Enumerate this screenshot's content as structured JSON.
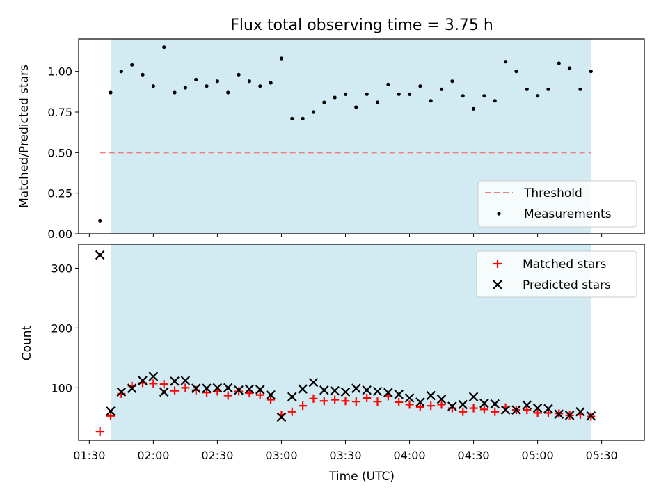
{
  "chart_data": {
    "title": "Flux total observing time = 3.75 h",
    "xlabel": "Time (UTC)",
    "x_ticks": [
      "01:30",
      "02:00",
      "02:30",
      "03:00",
      "03:30",
      "04:00",
      "04:30",
      "05:00",
      "05:30"
    ],
    "x_range_minutes": [
      85,
      350
    ],
    "shaded_span_minutes": [
      100,
      325
    ],
    "colors": {
      "shade": "#add8e6",
      "threshold": "#f08080",
      "measurement": "#000000",
      "matched": "#ff0000",
      "predicted": "#000000"
    },
    "panels": [
      {
        "type": "scatter",
        "ylabel": "Matched/Predicted stars",
        "ylim": [
          0,
          1.2
        ],
        "yticks": [
          "0.00",
          "0.25",
          "0.50",
          "0.75",
          "1.00"
        ],
        "legend_position": "lower right",
        "threshold": {
          "name": "Threshold",
          "value": 0.5,
          "x_range_minutes": [
            95,
            325
          ]
        },
        "series": [
          {
            "name": "Measurements",
            "x_minutes": [
              95,
              100,
              105,
              110,
              115,
              120,
              125,
              130,
              135,
              140,
              145,
              150,
              155,
              160,
              165,
              170,
              175,
              180,
              185,
              190,
              195,
              200,
              205,
              210,
              215,
              220,
              225,
              230,
              235,
              240,
              245,
              250,
              255,
              260,
              265,
              270,
              275,
              280,
              285,
              290,
              295,
              300,
              305,
              310,
              315,
              320,
              325
            ],
            "y": [
              0.08,
              0.87,
              1.0,
              1.04,
              0.98,
              0.91,
              1.15,
              0.87,
              0.9,
              0.95,
              0.91,
              0.94,
              0.87,
              0.98,
              0.94,
              0.91,
              0.93,
              1.08,
              0.71,
              0.71,
              0.75,
              0.81,
              0.84,
              0.86,
              0.78,
              0.86,
              0.81,
              0.92,
              0.86,
              0.86,
              0.91,
              0.82,
              0.89,
              0.94,
              0.85,
              0.77,
              0.85,
              0.82,
              1.06,
              1.0,
              0.89,
              0.85,
              0.89,
              1.05,
              1.02,
              0.89,
              1.0
            ]
          }
        ]
      },
      {
        "type": "scatter",
        "ylabel": "Count",
        "ylim": [
          12,
          340
        ],
        "yticks": [
          "100",
          "200",
          "300"
        ],
        "legend_position": "upper right",
        "series": [
          {
            "name": "Matched stars",
            "marker": "plus",
            "x_minutes": [
              95,
              100,
              105,
              110,
              115,
              120,
              125,
              130,
              135,
              140,
              145,
              150,
              155,
              160,
              165,
              170,
              175,
              180,
              185,
              190,
              195,
              200,
              205,
              210,
              215,
              220,
              225,
              230,
              235,
              240,
              245,
              250,
              255,
              260,
              265,
              270,
              275,
              280,
              285,
              290,
              295,
              300,
              305,
              310,
              315,
              320,
              325
            ],
            "y": [
              27,
              53,
              90,
              103,
              108,
              107,
              106,
              95,
              100,
              96,
              92,
              94,
              87,
              94,
              91,
              88,
              80,
              55,
              60,
              70,
              82,
              78,
              80,
              78,
              77,
              83,
              77,
              86,
              76,
              72,
              68,
              70,
              72,
              66,
              60,
              66,
              64,
              60,
              67,
              63,
              63,
              58,
              58,
              57,
              54,
              55,
              52
            ]
          },
          {
            "name": "Predicted stars",
            "marker": "x",
            "x_minutes": [
              95,
              100,
              105,
              110,
              115,
              120,
              125,
              130,
              135,
              140,
              145,
              150,
              155,
              160,
              165,
              170,
              175,
              180,
              185,
              190,
              195,
              200,
              205,
              210,
              215,
              220,
              225,
              230,
              235,
              240,
              245,
              250,
              255,
              260,
              265,
              270,
              275,
              280,
              285,
              290,
              295,
              300,
              305,
              310,
              315,
              320,
              325
            ],
            "y": [
              322,
              61,
              93,
              99,
              112,
              119,
              93,
              111,
              112,
              99,
              99,
              100,
              100,
              96,
              98,
              97,
              88,
              51,
              85,
              98,
              109,
              96,
              95,
              93,
              99,
              96,
              94,
              92,
              89,
              83,
              76,
              87,
              81,
              69,
              72,
              85,
              74,
              73,
              63,
              63,
              71,
              66,
              65,
              56,
              54,
              60,
              53
            ]
          }
        ]
      }
    ]
  }
}
